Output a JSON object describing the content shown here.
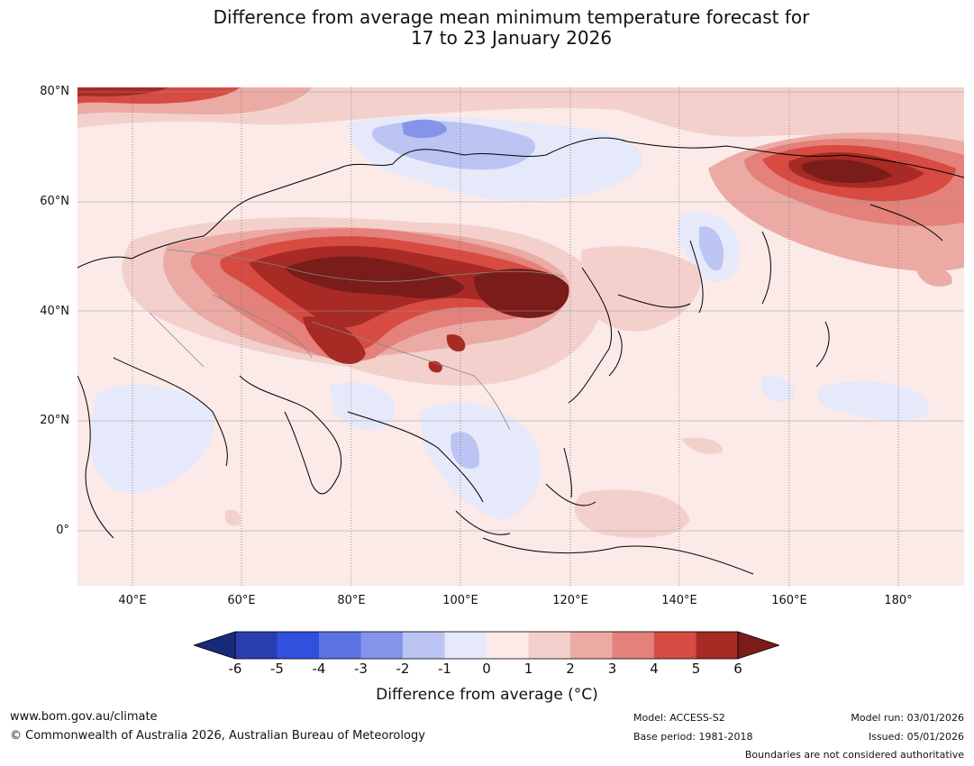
{
  "title": {
    "line1": "Difference from average mean minimum temperature forecast for",
    "line2": "17 to 23 January 2026"
  },
  "map": {
    "lat_labels": [
      "80°N",
      "60°N",
      "40°N",
      "20°N",
      "0°"
    ],
    "lon_labels": [
      "40°E",
      "60°E",
      "80°E",
      "100°E",
      "120°E",
      "140°E",
      "160°E",
      "180°"
    ],
    "extent": {
      "lon_min": 30,
      "lon_max": 192,
      "lat_min": -10,
      "lat_max": 80
    }
  },
  "colorbar": {
    "ticks": [
      "-6",
      "-5",
      "-4",
      "-3",
      "-2",
      "-1",
      "0",
      "1",
      "2",
      "3",
      "4",
      "5",
      "6"
    ],
    "colors": [
      "#1a2a7a",
      "#2a3db0",
      "#3150de",
      "#5b72e3",
      "#8594ea",
      "#bcc4f3",
      "#e6e9fa",
      "#fbeae8",
      "#f3d0cc",
      "#ebaaa4",
      "#e3817a",
      "#d74b42",
      "#a82a24",
      "#7a1c1a"
    ],
    "label": "Difference from average (°C)"
  },
  "footer": {
    "website": "www.bom.gov.au/climate",
    "copyright": "© Commonwealth of Australia 2026, Australian Bureau of Meteorology",
    "model": "Model: ACCESS-S2",
    "base_period": "Base period: 1981-2018",
    "model_run": "Model run: 03/01/2026",
    "issued": "Issued: 05/01/2026",
    "disclaimer": "Boundaries are not considered authoritative"
  }
}
